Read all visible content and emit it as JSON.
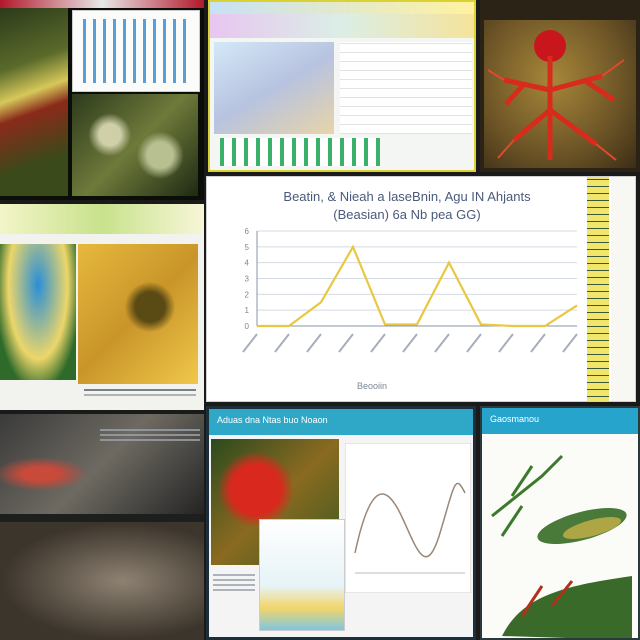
{
  "collage": {
    "main_chart": {
      "title_line1": "Beatin, & Nieah a laseBnin, Agu IN Ahjants",
      "title_line2": "(Beasian) 6a Nb pea GG)",
      "xlabel": "Beooiin",
      "colors": {
        "line": "#e8c840",
        "grid": "#d5dbe3",
        "ruler": "#f2e66a"
      }
    },
    "chart_data": {
      "type": "line",
      "title": "Beatin, & Nieah a laseBnin, Agu IN Ahjants (Beasian) 6a Nb pea GG)",
      "xlabel": "Beooiin",
      "ylabel": "",
      "x": [
        0,
        1,
        2,
        3,
        4,
        5,
        6,
        7,
        8,
        9,
        10
      ],
      "y": [
        0.0,
        0.0,
        1.5,
        5.0,
        0.1,
        0.1,
        4.0,
        0.1,
        0.0,
        0.0,
        1.3
      ],
      "ylim": [
        0,
        6
      ],
      "yticks": [
        "0",
        "1",
        "2",
        "3",
        "4",
        "5",
        "6"
      ],
      "grid": true
    },
    "panel_botcenter": {
      "header": "Aduas dna Ntas buo Noaon"
    },
    "panel_botright": {
      "header": "Gaosmanou"
    }
  }
}
